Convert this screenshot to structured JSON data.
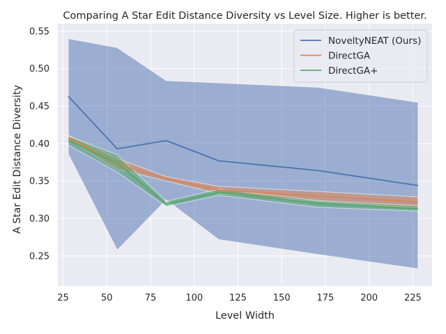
{
  "chart_data": {
    "type": "line",
    "title": "Comparing A Star Edit Distance Diversity  vs Level Size. Higher is better.",
    "xlabel": "Level Width",
    "ylabel": "A Star Edit Distance Diversity",
    "xlim": [
      22,
      236
    ],
    "ylim": [
      0.21,
      0.56
    ],
    "xticks": [
      25,
      50,
      75,
      100,
      125,
      150,
      175,
      200,
      225
    ],
    "yticks": [
      0.25,
      0.3,
      0.35,
      0.4,
      0.45,
      0.5,
      0.55
    ],
    "xtick_labels": [
      "25",
      "50",
      "75",
      "100",
      "125",
      "150",
      "175",
      "200",
      "225"
    ],
    "ytick_labels": [
      "0.25",
      "0.30",
      "0.35",
      "0.40",
      "0.45",
      "0.50",
      "0.55"
    ],
    "grid": true,
    "legend": "top-right",
    "x": [
      28,
      56,
      84,
      114,
      171,
      228
    ],
    "series": [
      {
        "name": "NoveltyNEAT (Ours)",
        "color": "#4c72b0",
        "values": [
          0.463,
          0.393,
          0.404,
          0.377,
          0.364,
          0.344
        ],
        "lower": [
          0.386,
          0.258,
          0.325,
          0.272,
          0.252,
          0.233
        ],
        "upper": [
          0.54,
          0.528,
          0.484,
          0.481,
          0.475,
          0.455
        ]
      },
      {
        "name": "DirectGA",
        "color": "#dd8452",
        "values": [
          0.408,
          0.373,
          0.353,
          0.338,
          0.33,
          0.322
        ],
        "lower": [
          0.405,
          0.366,
          0.35,
          0.333,
          0.323,
          0.314
        ],
        "upper": [
          0.411,
          0.38,
          0.356,
          0.343,
          0.336,
          0.329
        ]
      },
      {
        "name": "DirectGA+",
        "color": "#55a868",
        "values": [
          0.404,
          0.374,
          0.319,
          0.335,
          0.32,
          0.313
        ],
        "lower": [
          0.398,
          0.362,
          0.316,
          0.331,
          0.315,
          0.31
        ],
        "upper": [
          0.41,
          0.385,
          0.323,
          0.339,
          0.324,
          0.317
        ]
      }
    ]
  }
}
